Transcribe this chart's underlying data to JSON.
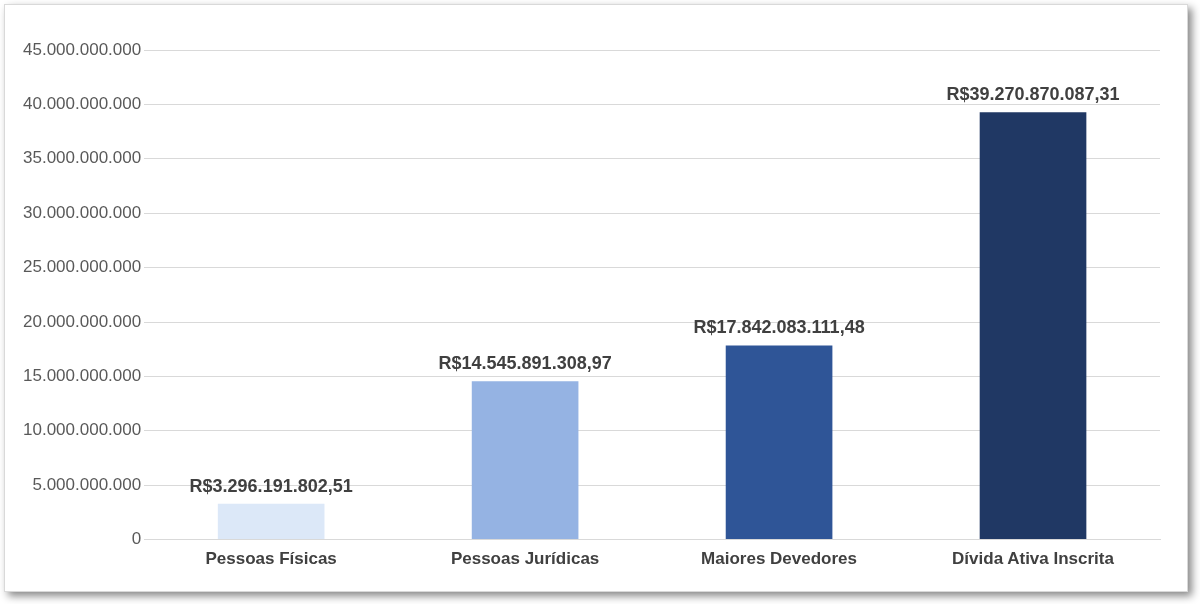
{
  "chart_data": {
    "type": "bar",
    "categories": [
      "Pessoas Físicas",
      "Pessoas Jurídicas",
      "Maiores Devedores",
      "Dívida Ativa Inscrita"
    ],
    "values": [
      3296191802.51,
      14545891308.97,
      17842083111.48,
      39270870087.31
    ],
    "colors": [
      "#dce8f8",
      "#95b3e3",
      "#2f5597",
      "#203864"
    ],
    "value_labels": [
      "R$3.296.191.802,51",
      "R$14.545.891.308,97",
      "R$17.842.083.111,48",
      "R$39.270.870.087,31"
    ],
    "ylim": [
      0,
      45000000000
    ],
    "yticks": [
      {
        "value": 0,
        "label": "0"
      },
      {
        "value": 5000000000,
        "label": "5.000.000.000"
      },
      {
        "value": 10000000000,
        "label": "10.000.000.000"
      },
      {
        "value": 15000000000,
        "label": "15.000.000.000"
      },
      {
        "value": 20000000000,
        "label": "20.000.000.000"
      },
      {
        "value": 25000000000,
        "label": "25.000.000.000"
      },
      {
        "value": 30000000000,
        "label": "30.000.000.000"
      },
      {
        "value": 35000000000,
        "label": "35.000.000.000"
      },
      {
        "value": 40000000000,
        "label": "40.000.000.000"
      },
      {
        "value": 45000000000,
        "label": "45.000.000.000"
      }
    ],
    "grid": "y",
    "legend": false
  }
}
